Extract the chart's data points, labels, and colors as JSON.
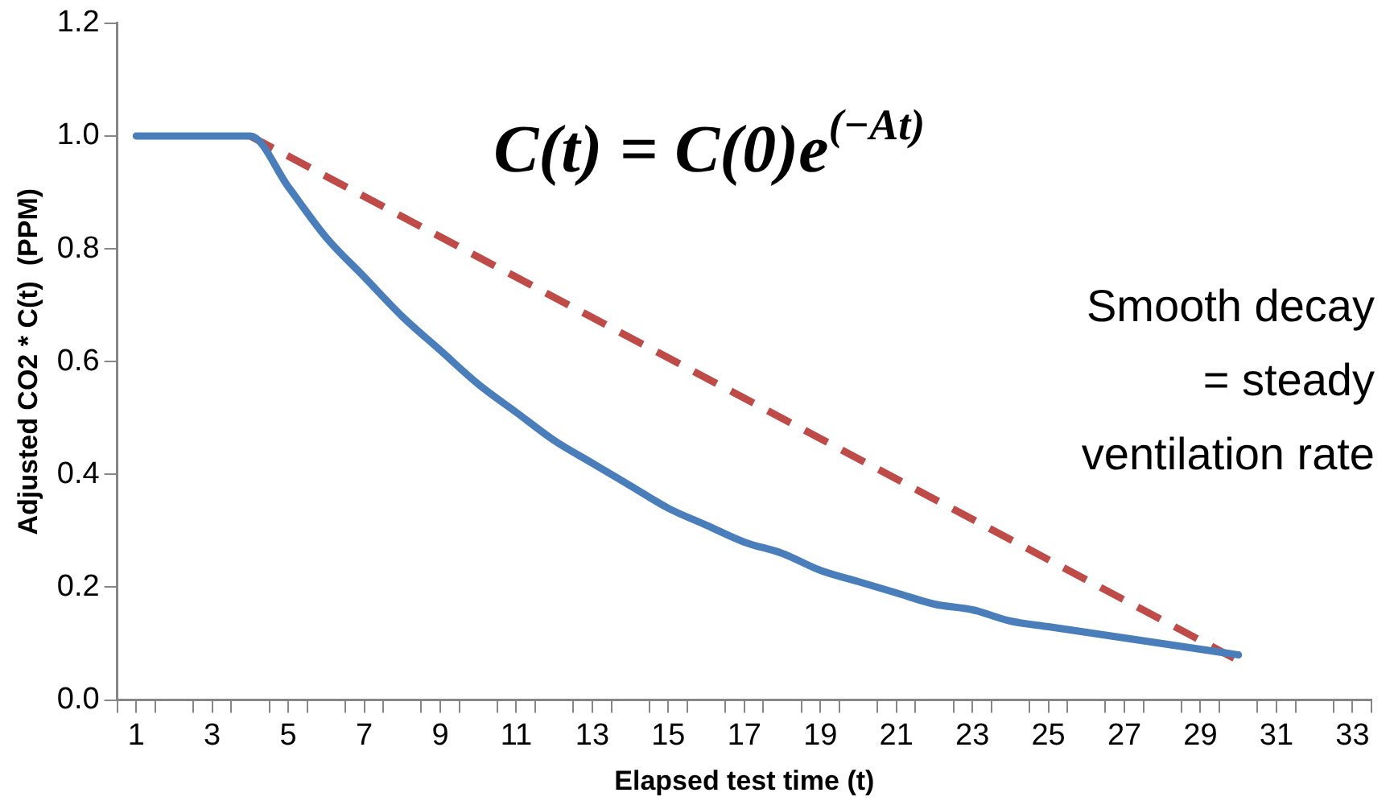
{
  "chart_data": {
    "type": "line",
    "xlabel": "Elapsed test time (t)",
    "ylabel": "Adjusted CO2 * C(t)  (PPM)",
    "series": [
      {
        "color": "#4a7ebb",
        "x": [
          1,
          2,
          3,
          4,
          5,
          6,
          7,
          8,
          9,
          10,
          11,
          12,
          13,
          14,
          15,
          16,
          17,
          18,
          19,
          20,
          21,
          22,
          23,
          24,
          25,
          26,
          27,
          28,
          29,
          30
        ],
        "values": [
          1.0,
          1.0,
          1.0,
          1.0,
          0.91,
          0.82,
          0.75,
          0.68,
          0.62,
          0.56,
          0.51,
          0.46,
          0.42,
          0.38,
          0.34,
          0.31,
          0.28,
          0.26,
          0.23,
          0.21,
          0.19,
          0.17,
          0.16,
          0.14,
          0.13,
          0.12,
          0.11,
          0.1,
          0.09,
          0.08
        ]
      },
      {
        "color": "#be4b48",
        "line_style": "dashed",
        "x": [
          4,
          30
        ],
        "values": [
          1.0,
          0.07
        ]
      }
    ],
    "xlim": [
      0.5,
      33.5
    ],
    "xticks": [
      {
        "value": 0.5,
        "label": null
      },
      1,
      {
        "value": 1.5,
        "label": null
      },
      {
        "value": 2.5,
        "label": null
      },
      3,
      {
        "value": 3.5,
        "label": null
      },
      {
        "value": 4.5,
        "label": null
      },
      5,
      {
        "value": 5.5,
        "label": null
      },
      {
        "value": 6.5,
        "label": null
      },
      7,
      {
        "value": 7.5,
        "label": null
      },
      {
        "value": 8.5,
        "label": null
      },
      9,
      {
        "value": 9.5,
        "label": null
      },
      {
        "value": 10.5,
        "label": null
      },
      11,
      {
        "value": 11.5,
        "label": null
      },
      {
        "value": 12.5,
        "label": null
      },
      13,
      {
        "value": 13.5,
        "label": null
      },
      {
        "value": 14.5,
        "label": null
      },
      15,
      {
        "value": 15.5,
        "label": null
      },
      {
        "value": 16.5,
        "label": null
      },
      17,
      {
        "value": 17.5,
        "label": null
      },
      {
        "value": 18.5,
        "label": null
      },
      19,
      {
        "value": 19.5,
        "label": null
      },
      {
        "value": 20.5,
        "label": null
      },
      21,
      {
        "value": 21.5,
        "label": null
      },
      {
        "value": 22.5,
        "label": null
      },
      23,
      {
        "value": 23.5,
        "label": null
      },
      {
        "value": 24.5,
        "label": null
      },
      25,
      {
        "value": 25.5,
        "label": null
      },
      {
        "value": 26.5,
        "label": null
      },
      27,
      {
        "value": 27.5,
        "label": null
      },
      {
        "value": 28.5,
        "label": null
      },
      29,
      {
        "value": 29.5,
        "label": null
      },
      {
        "value": 30.5,
        "label": null
      },
      31,
      {
        "value": 31.5,
        "label": null
      },
      {
        "value": 32.5,
        "label": null
      },
      33,
      {
        "value": 33.5,
        "label": null
      }
    ],
    "ylim": [
      0,
      1.2
    ],
    "yticks": [
      {
        "value": 0,
        "label": "0.0"
      },
      {
        "value": 0.2,
        "label": "0.2"
      },
      {
        "value": 0.4,
        "label": "0.4"
      },
      {
        "value": 0.6,
        "label": "0.6"
      },
      {
        "value": 0.8,
        "label": "0.8"
      },
      {
        "value": 1,
        "label": "1.0"
      },
      {
        "value": 1.2,
        "label": "1.2"
      }
    ],
    "grid": false,
    "legend": false,
    "marker": "none",
    "line_style": "solid",
    "annotations": [
      "C(t) = C(0)e$^{(−At)}$",
      "Smooth decay\n= steady\nventilation rate"
    ]
  }
}
